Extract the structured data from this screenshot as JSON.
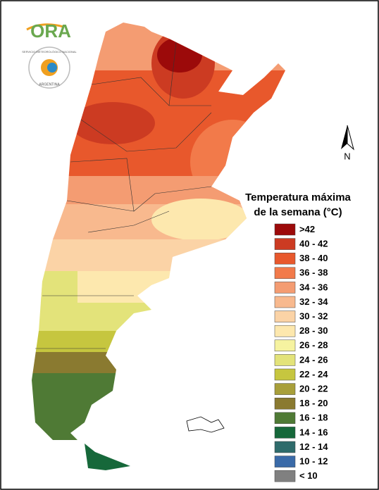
{
  "header": {
    "logo": "ORA",
    "agency": "SERVICIO METEOROLÓGICO NACIONAL",
    "country": "ARGENTINA"
  },
  "north": "N",
  "legend": {
    "title_lines": [
      "Temperatura máxima",
      "de la semana (°C)"
    ],
    "items": [
      {
        "label": ">42",
        "color": "#9c0a0a"
      },
      {
        "label": "40 - 42",
        "color": "#cc3b22"
      },
      {
        "label": "38 - 40",
        "color": "#e8582c"
      },
      {
        "label": "36 - 38",
        "color": "#f27a4a"
      },
      {
        "label": "34 - 36",
        "color": "#f49c72"
      },
      {
        "label": "32 - 34",
        "color": "#f8b98e"
      },
      {
        "label": "30 - 32",
        "color": "#fbd3a6"
      },
      {
        "label": "28 - 30",
        "color": "#fde8ae"
      },
      {
        "label": "26 - 28",
        "color": "#f6f3a0"
      },
      {
        "label": "24 - 26",
        "color": "#e3e37a"
      },
      {
        "label": "22 - 24",
        "color": "#c6c63f"
      },
      {
        "label": "20 - 22",
        "color": "#a89f3a"
      },
      {
        "label": "18 - 20",
        "color": "#8a7a30"
      },
      {
        "label": "16 - 18",
        "color": "#4f7a35"
      },
      {
        "label": "14 - 16",
        "color": "#16683a"
      },
      {
        "label": "12 - 14",
        "color": "#2e6b6b"
      },
      {
        "label": "10 - 12",
        "color": "#3a6aa8"
      },
      {
        "label": "< 10",
        "color": "#808080"
      }
    ]
  }
}
